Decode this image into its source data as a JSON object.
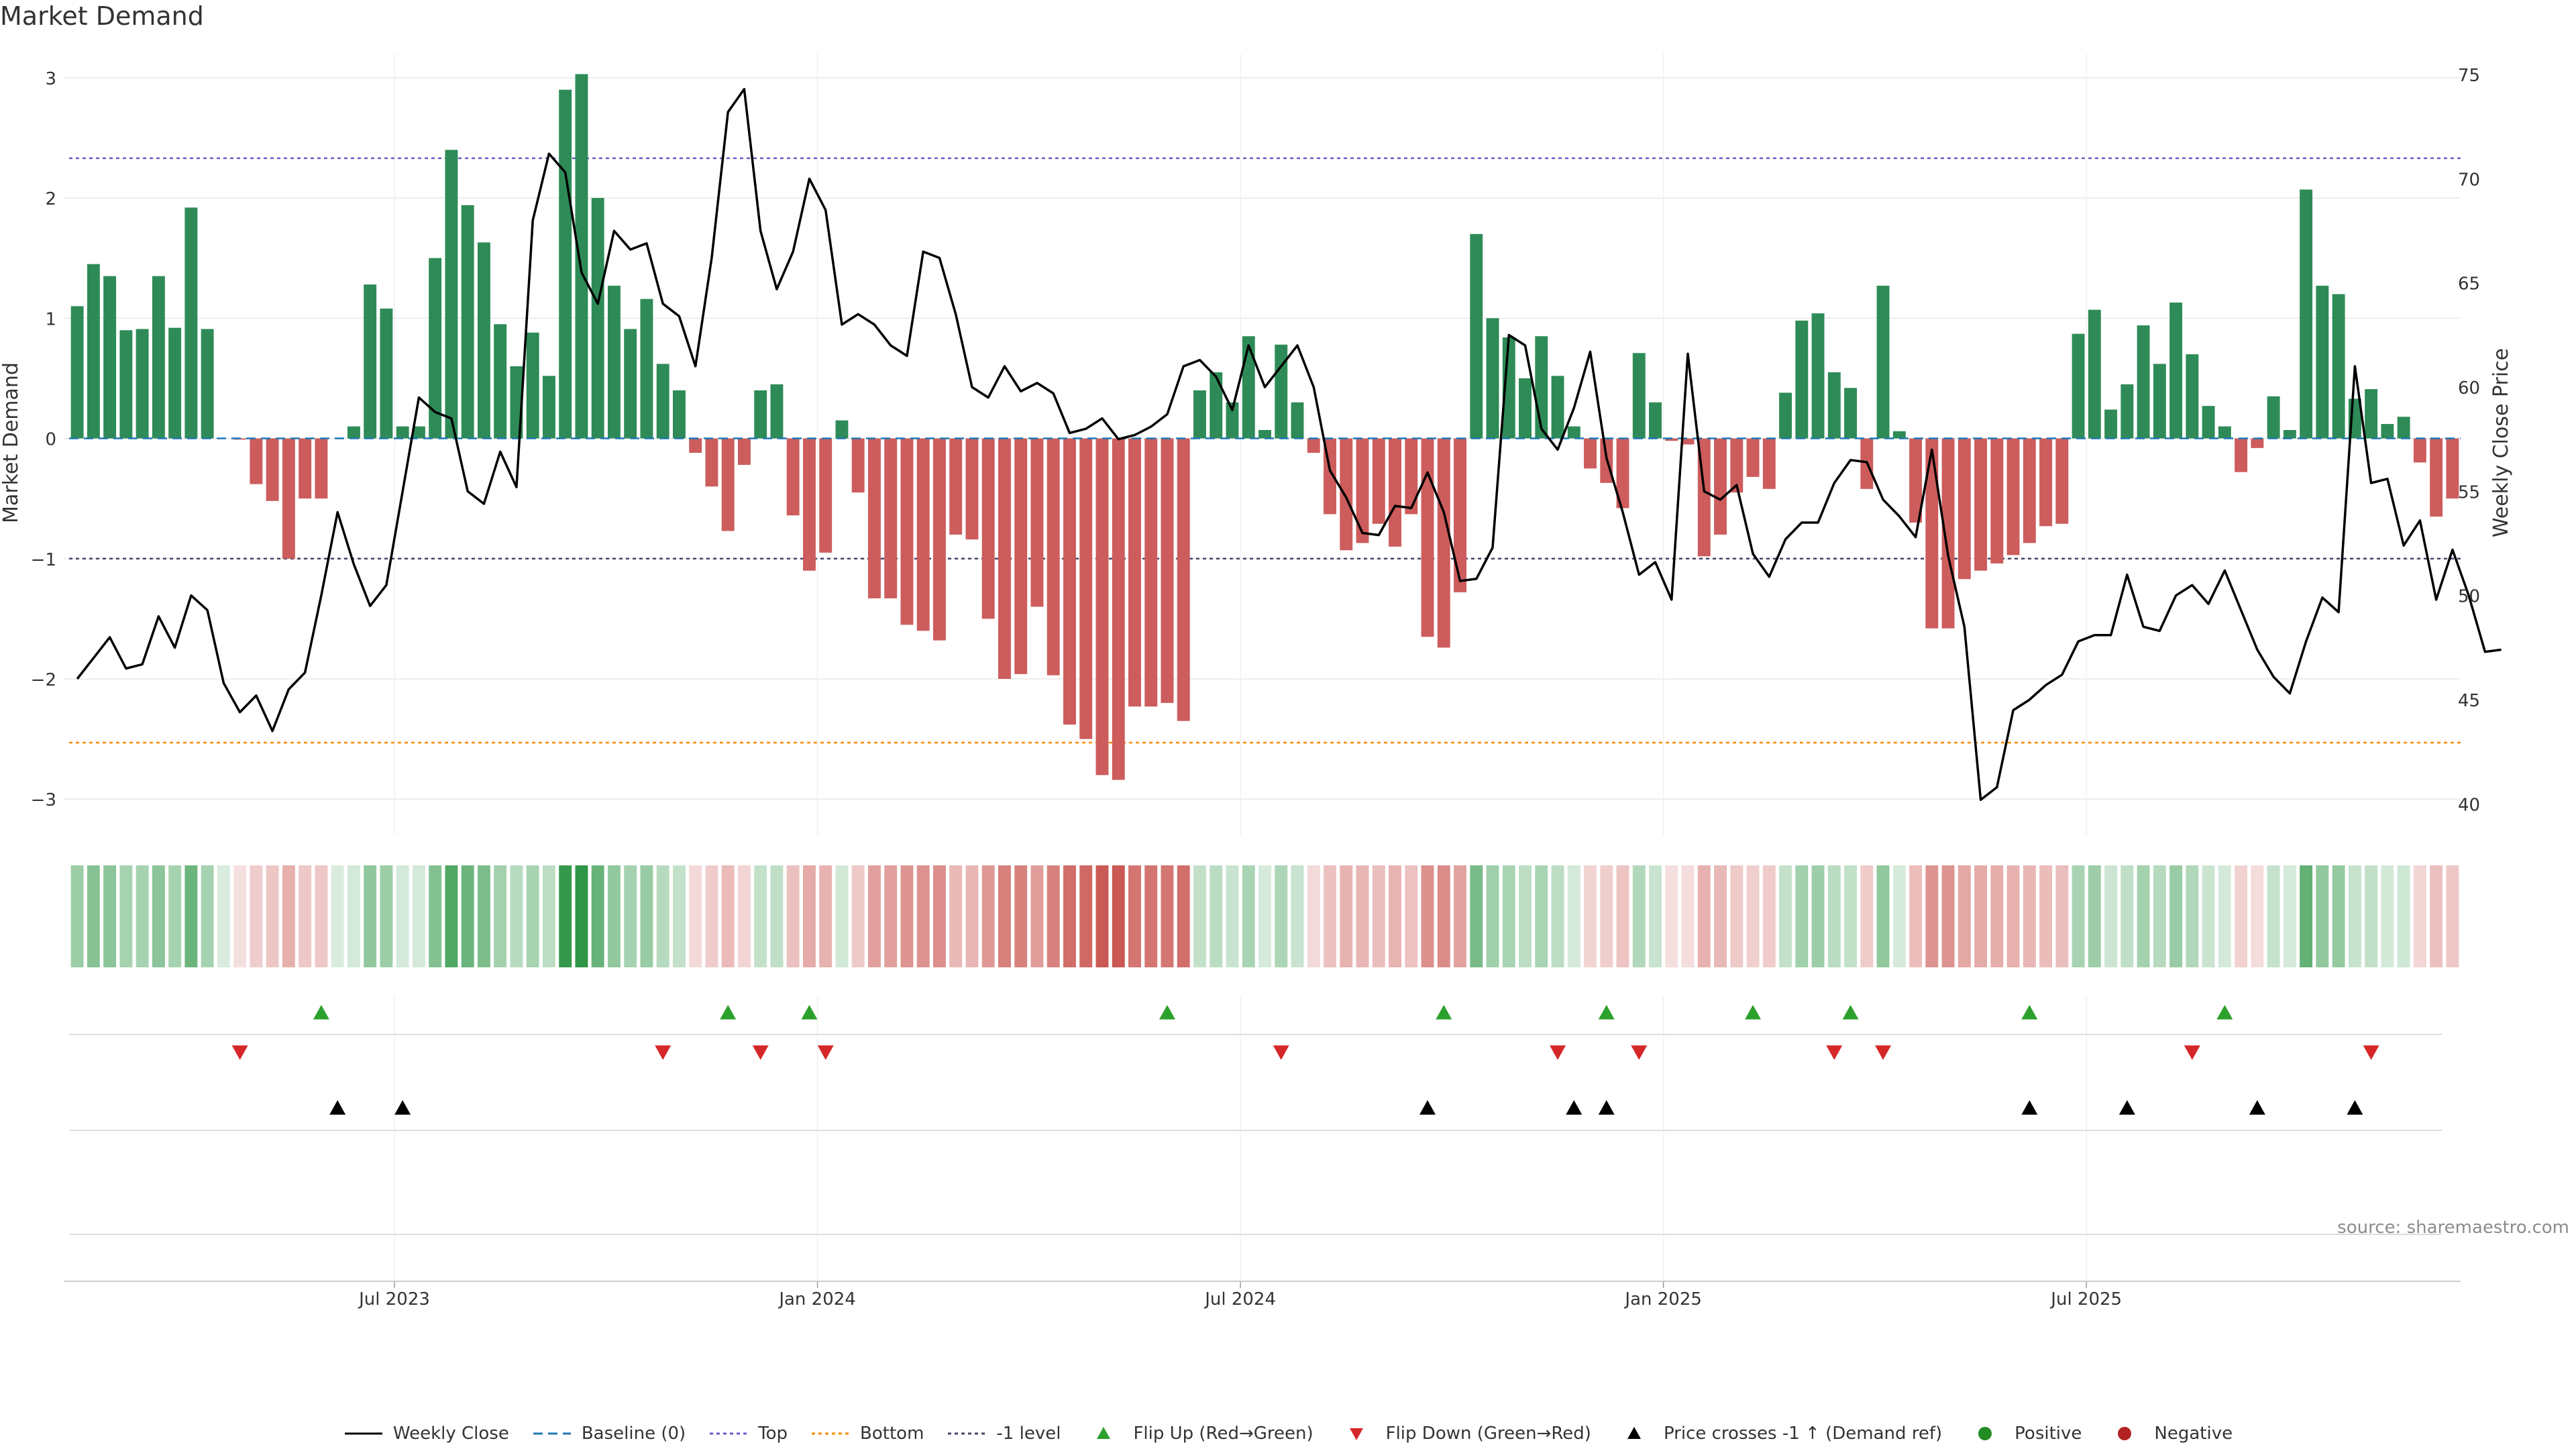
{
  "chart_data": {
    "type": "bar",
    "title": "Market Demand",
    "source": "source: sharemaestro.com",
    "y_left_label": "Market Demand",
    "y_right_label": "Weekly Close Price",
    "y_left_range": [
      -3.3,
      3.2
    ],
    "y_left_ticks": [
      3,
      2,
      1,
      0,
      -1,
      -2,
      -3
    ],
    "y_left_tick_labels": [
      "3",
      "2",
      "1",
      "0",
      "−1",
      "−2",
      "−3"
    ],
    "y_right_range": [
      38.5,
      76
    ],
    "y_right_ticks": [
      75,
      70,
      65,
      60,
      55,
      50,
      45,
      40
    ],
    "x_ticks": [
      {
        "label": "Jul 2023",
        "index": 20
      },
      {
        "label": "Jan 2024",
        "index": 46
      },
      {
        "label": "Jul 2024",
        "index": 72
      },
      {
        "label": "Jan 2025",
        "index": 98
      },
      {
        "label": "Jul 2025",
        "index": 124
      }
    ],
    "reference_lines": {
      "top": 2.33,
      "bottom": -2.53,
      "minus_one": -1,
      "baseline": 0
    },
    "demand": [
      1.1,
      1.45,
      1.35,
      0.9,
      0.91,
      1.35,
      0.92,
      1.92,
      0.91,
      0,
      -0.01,
      -0.38,
      -0.52,
      -1.0,
      -0.5,
      -0.5,
      0,
      0.1,
      1.28,
      1.08,
      0.1,
      0.1,
      1.5,
      2.4,
      1.94,
      1.63,
      0.95,
      0.6,
      0.88,
      0.52,
      2.9,
      3.03,
      2.0,
      1.27,
      0.91,
      1.16,
      0.62,
      0.4,
      -0.12,
      -0.4,
      -0.77,
      -0.22,
      0.4,
      0.45,
      -0.64,
      -1.1,
      -0.95,
      0.15,
      -0.45,
      -1.33,
      -1.33,
      -1.55,
      -1.6,
      -1.68,
      -0.8,
      -0.84,
      -1.5,
      -2.0,
      -1.96,
      -1.4,
      -1.97,
      -2.38,
      -2.5,
      -2.8,
      -2.84,
      -2.23,
      -2.23,
      -2.2,
      -2.35,
      0.4,
      0.55,
      0.3,
      0.85,
      0.07,
      0.78,
      0.3,
      -0.12,
      -0.63,
      -0.93,
      -0.87,
      -0.71,
      -0.9,
      -0.63,
      -1.65,
      -1.74,
      -1.28,
      1.7,
      1.0,
      0.84,
      0.5,
      0.85,
      0.52,
      0.1,
      -0.25,
      -0.37,
      -0.58,
      0.71,
      0.3,
      -0.02,
      -0.05,
      -0.98,
      -0.8,
      -0.45,
      -0.32,
      -0.42,
      0.38,
      0.98,
      1.04,
      0.55,
      0.42,
      -0.42,
      1.27,
      0.06,
      -0.7,
      -1.58,
      -1.58,
      -1.17,
      -1.1,
      -1.04,
      -0.97,
      -0.87,
      -0.73,
      -0.71,
      0.87,
      1.07,
      0.24,
      0.45,
      0.94,
      0.62,
      1.13,
      0.7,
      0.27,
      0.1,
      -0.28,
      -0.08,
      0.35,
      0.07,
      2.07,
      1.27,
      1.2,
      0.33,
      0.41,
      0.12,
      0.18,
      -0.2,
      -0.65,
      -0.5
    ],
    "weekly_close": [
      46,
      47,
      48,
      46.5,
      46.7,
      49,
      47.5,
      50,
      49.3,
      45.8,
      44.4,
      45.2,
      43.5,
      45.5,
      46.3,
      50,
      54,
      51.5,
      49.5,
      50.5,
      55,
      59.5,
      58.8,
      58.5,
      55,
      54.4,
      56.9,
      55.2,
      68,
      71.2,
      70.3,
      65.5,
      64,
      67.5,
      66.6,
      66.9,
      64.0,
      63.4,
      61,
      66.2,
      73.2,
      74.3,
      67.5,
      64.7,
      66.5,
      70,
      68.5,
      63,
      63.5,
      63,
      62,
      61.5,
      66.5,
      66.2,
      63.5,
      60,
      59.5,
      61,
      59.8,
      60.2,
      59.7,
      57.8,
      58,
      58.5,
      57.5,
      57.7,
      58.1,
      58.7,
      61,
      61.3,
      60.5,
      58.9,
      62,
      60,
      61,
      62,
      60,
      56,
      54.7,
      53,
      52.9,
      54.3,
      54.2,
      55.9,
      54,
      50.7,
      50.8,
      52.3,
      62.5,
      62,
      58,
      57,
      59,
      61.7,
      56.6,
      54,
      51,
      51.6,
      49.8,
      61.6,
      55,
      54.6,
      55.3,
      52,
      50.9,
      52.7,
      53.5,
      53.5,
      55.4,
      56.5,
      56.4,
      54.6,
      53.8,
      52.8,
      57,
      51.9,
      48.5,
      40.2,
      40.8,
      44.5,
      45,
      45.7,
      46.2,
      47.8,
      48.1,
      48.1,
      51,
      48.5,
      48.3,
      50,
      50.5,
      49.6,
      51.2,
      49.3,
      47.4,
      46.1,
      45.3,
      47.8,
      49.9,
      49.2,
      61,
      55.4,
      55.6,
      52.4,
      53.6,
      49.8,
      52.2,
      50,
      47.3,
      47.4
    ],
    "flip_up_indices": [
      15,
      40,
      45,
      67,
      84,
      94,
      103,
      109,
      120,
      132
    ],
    "flip_down_indices": [
      10,
      36,
      42,
      46,
      74,
      91,
      96,
      108,
      111,
      130,
      141
    ],
    "price_cross_indices": [
      16,
      20,
      83,
      92,
      94,
      120,
      126,
      134,
      140
    ],
    "strip_range": [
      -3.0,
      3.0
    ],
    "legend": [
      {
        "key": "close",
        "label": "Weekly Close"
      },
      {
        "key": "baseline",
        "label": "Baseline (0)"
      },
      {
        "key": "top",
        "label": "Top"
      },
      {
        "key": "bottom",
        "label": "Bottom"
      },
      {
        "key": "minus1",
        "label": "-1 level"
      },
      {
        "key": "flipup",
        "label": "Flip Up (Red→Green)"
      },
      {
        "key": "flipdown",
        "label": "Flip Down (Green→Red)"
      },
      {
        "key": "cross",
        "label": "Price crosses -1 ↑ (Demand ref)"
      },
      {
        "key": "positive",
        "label": "Positive"
      },
      {
        "key": "negative",
        "label": "Negative"
      }
    ],
    "colors": {
      "positive": "#2e8b57",
      "negative": "#cd5c5c",
      "close": "#000000",
      "baseline": "#1f77b4",
      "top": "#6a5acd",
      "bottom": "#ff8c00",
      "minus1": "#444466",
      "flipup": "#2ca02c",
      "flipdown": "#d62728",
      "cross": "#000000",
      "positive_dot": "#228b22",
      "negative_dot": "#b22222"
    }
  }
}
